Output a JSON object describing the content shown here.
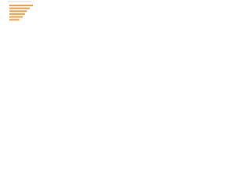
{
  "chart_data": {
    "type": "bar",
    "orientation": "horizontal",
    "values": [
      100,
      86,
      74,
      66,
      57,
      42
    ],
    "color": "#f5a04a"
  }
}
